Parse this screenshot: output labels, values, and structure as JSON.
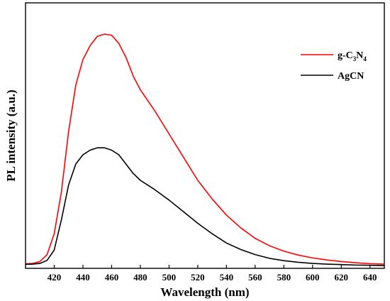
{
  "chart_data": {
    "type": "line",
    "xlabel": "Wavelength (nm)",
    "ylabel": "PL intensity (a.u.)",
    "xlim": [
      400,
      650
    ],
    "ylim": [
      0,
      1.0
    ],
    "x_ticks": [
      420,
      440,
      460,
      480,
      500,
      520,
      540,
      560,
      580,
      600,
      620,
      640
    ],
    "y_ticks_shown": false,
    "grid": false,
    "legend_position": "top-right",
    "series": [
      {
        "name": "g-C3N4",
        "legend_parts": {
          "g": "g-C",
          "s1": "3",
          "m": "N",
          "s2": "4"
        },
        "color": "#ff0000",
        "x": [
          400,
          405,
          410,
          415,
          420,
          425,
          430,
          435,
          440,
          445,
          450,
          455,
          460,
          465,
          470,
          475,
          480,
          490,
          500,
          510,
          520,
          530,
          540,
          550,
          560,
          570,
          580,
          590,
          600,
          610,
          620,
          630,
          640,
          650
        ],
        "y": [
          0.01,
          0.012,
          0.02,
          0.05,
          0.14,
          0.32,
          0.58,
          0.78,
          0.89,
          0.95,
          0.99,
          1.0,
          0.995,
          0.96,
          0.9,
          0.82,
          0.76,
          0.67,
          0.57,
          0.47,
          0.37,
          0.29,
          0.22,
          0.165,
          0.12,
          0.088,
          0.065,
          0.048,
          0.036,
          0.027,
          0.02,
          0.015,
          0.011,
          0.009
        ]
      },
      {
        "name": "AgCN",
        "color": "#000000",
        "x": [
          400,
          405,
          410,
          415,
          420,
          425,
          430,
          435,
          440,
          445,
          450,
          455,
          460,
          465,
          470,
          475,
          480,
          490,
          500,
          510,
          520,
          530,
          540,
          550,
          560,
          570,
          580,
          590,
          600,
          610,
          620,
          630,
          640,
          650
        ],
        "y": [
          0.008,
          0.009,
          0.012,
          0.025,
          0.07,
          0.2,
          0.35,
          0.44,
          0.48,
          0.5,
          0.51,
          0.51,
          0.5,
          0.48,
          0.44,
          0.4,
          0.37,
          0.33,
          0.285,
          0.235,
          0.185,
          0.14,
          0.1,
          0.072,
          0.05,
          0.034,
          0.024,
          0.017,
          0.012,
          0.009,
          0.007,
          0.005,
          0.004,
          0.003
        ]
      }
    ]
  }
}
